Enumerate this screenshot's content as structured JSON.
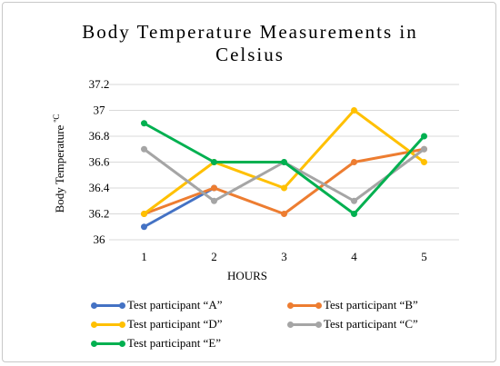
{
  "chart_data": {
    "type": "line",
    "title_line1": "Body Temperature Measurements in",
    "title_line2": "Celsius",
    "xlabel": "HOURS",
    "ylabel": "Body Temperature ",
    "ylabel_unit": "ºC",
    "categories": [
      "1",
      "2",
      "3",
      "4",
      "5"
    ],
    "ylim": [
      36,
      37.2
    ],
    "yticks": [
      "36",
      "36.2",
      "36.4",
      "36.6",
      "36.8",
      "37",
      "37.2"
    ],
    "grid": "horizontal",
    "legend_position": "bottom",
    "series": [
      {
        "name": "Test participant “A”",
        "color": "#4472c4",
        "values": [
          36.1,
          36.4,
          null,
          null,
          null
        ]
      },
      {
        "name": "Test participant “B”",
        "color": "#ed7d31",
        "values": [
          36.2,
          36.4,
          36.2,
          36.6,
          36.7
        ]
      },
      {
        "name": "Test participant “D”",
        "color": "#ffc000",
        "values": [
          36.2,
          36.6,
          36.4,
          37.0,
          36.6
        ]
      },
      {
        "name": "Test participant “C”",
        "color": "#a5a5a5",
        "values": [
          36.7,
          36.3,
          36.6,
          36.3,
          36.7
        ]
      },
      {
        "name": "Test participant “E”",
        "color": "#00b050",
        "values": [
          36.9,
          36.6,
          36.6,
          36.2,
          36.8
        ]
      }
    ]
  },
  "legend": [
    {
      "series": 0,
      "label": "Test participant “A”"
    },
    {
      "series": 1,
      "label": "Test participant “B”"
    },
    {
      "series": 2,
      "label": "Test participant “D”"
    },
    {
      "series": 3,
      "label": "Test participant “C”"
    },
    {
      "series": 4,
      "label": "Test participant “E”"
    }
  ]
}
